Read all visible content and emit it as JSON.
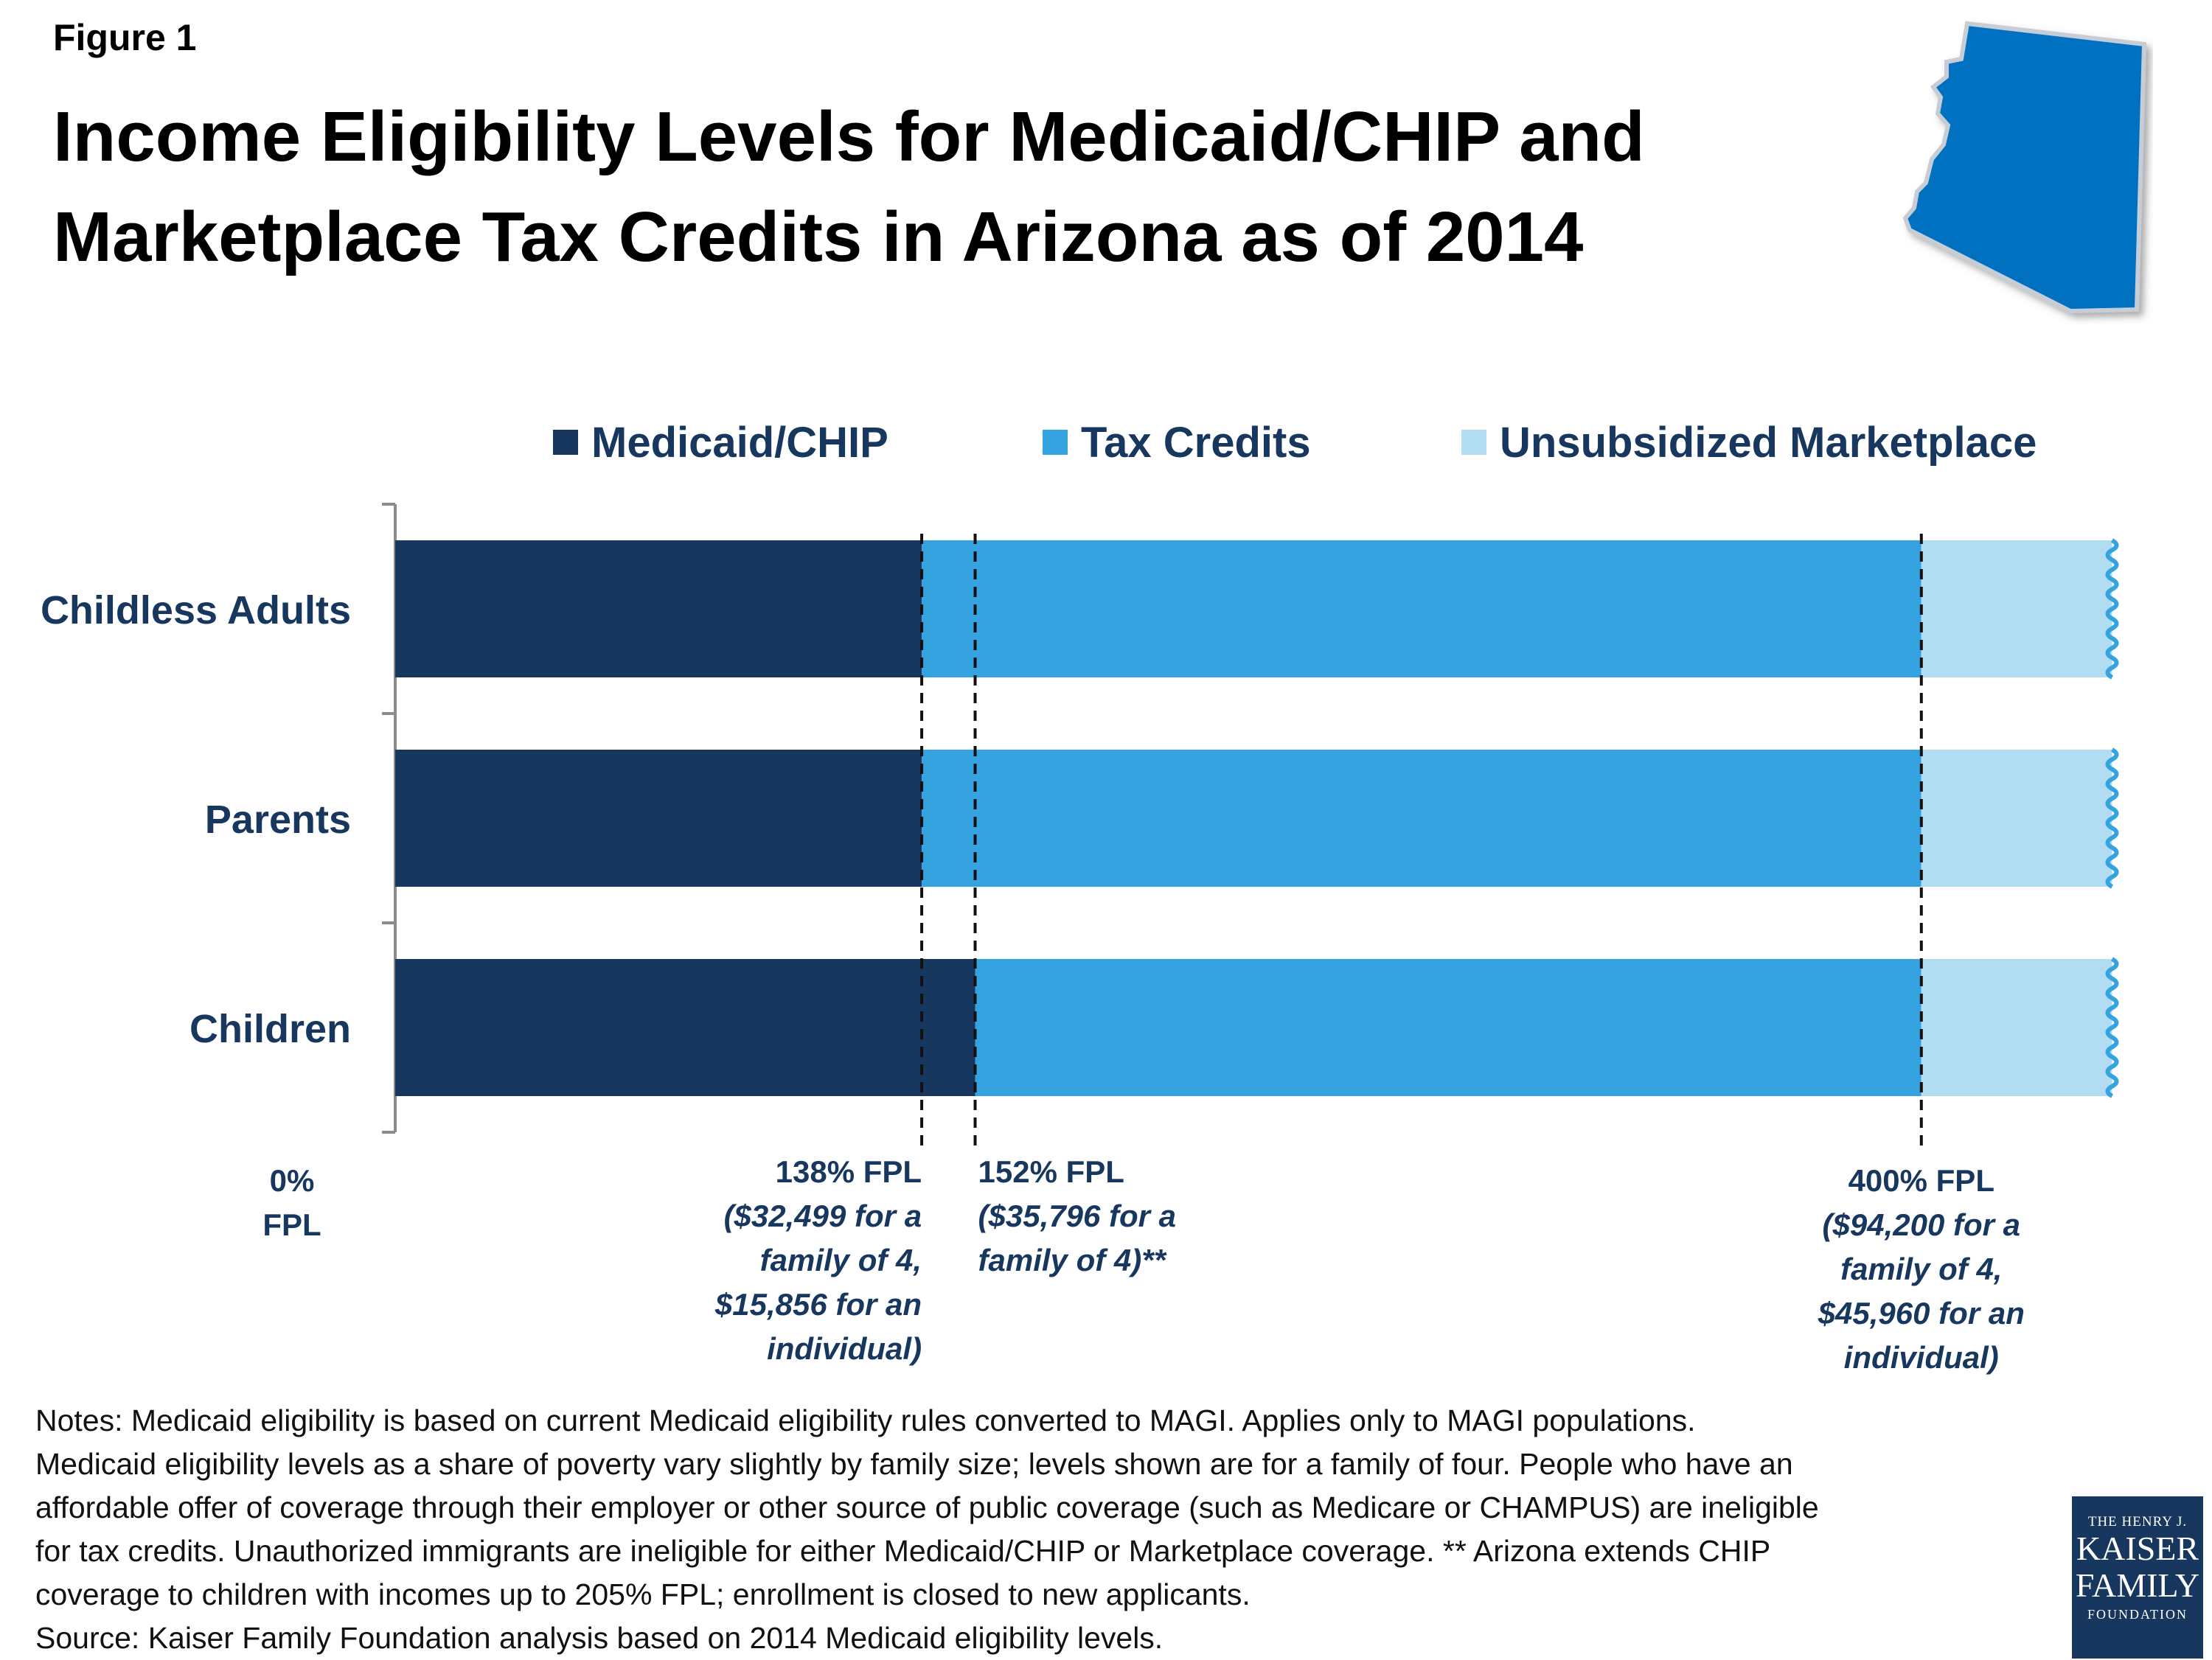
{
  "figure_label": "Figure 1",
  "title_lines": [
    "Income Eligibility Levels for Medicaid/CHIP and",
    "Marketplace Tax Credits in Arizona as of 2014"
  ],
  "state_map": {
    "name": "Arizona",
    "color": "#0070c0"
  },
  "legend": [
    {
      "label": "Medicaid/CHIP",
      "color": "#17375e"
    },
    {
      "label": "Tax Credits",
      "color": "#34a3e0"
    },
    {
      "label": "Unsubsidized Marketplace",
      "color": "#b1dcf1"
    }
  ],
  "chart_data": {
    "type": "bar",
    "orientation": "horizontal",
    "stacked": true,
    "x_unit": "% FPL",
    "xlim": [
      0,
      470
    ],
    "x_axis_break_at_end": true,
    "categories": [
      "Childless Adults",
      "Parents",
      "Children"
    ],
    "series": [
      {
        "name": "Medicaid/CHIP",
        "color": "#17375e",
        "ranges": [
          [
            0,
            138
          ],
          [
            0,
            138
          ],
          [
            0,
            152
          ]
        ]
      },
      {
        "name": "Tax Credits",
        "color": "#34a3e0",
        "ranges": [
          [
            138,
            400
          ],
          [
            138,
            400
          ],
          [
            152,
            400
          ]
        ]
      },
      {
        "name": "Unsubsidized Marketplace",
        "color": "#b1dcf1",
        "ranges": [
          [
            400,
            450
          ],
          [
            400,
            450
          ],
          [
            400,
            450
          ]
        ]
      }
    ],
    "reference_lines": [
      138,
      152,
      400
    ],
    "tick_labels": [
      {
        "value": 0,
        "align": "center",
        "pct": [
          "0%",
          "FPL"
        ],
        "note": []
      },
      {
        "value": 138,
        "align": "right",
        "pct": [
          "138% FPL"
        ],
        "note": [
          "($32,499 for a",
          "family of 4,",
          "$15,856 for an",
          "individual)"
        ]
      },
      {
        "value": 152,
        "align": "left",
        "pct": [
          "152% FPL"
        ],
        "note": [
          "($35,796 for a",
          "family of 4)**"
        ]
      },
      {
        "value": 400,
        "align": "center",
        "pct": [
          "400% FPL"
        ],
        "note": [
          "($94,200 for a",
          "family of 4,",
          "$45,960 for an",
          "individual)"
        ]
      }
    ]
  },
  "notes_lines": [
    "Notes: Medicaid eligibility is based on current Medicaid eligibility rules converted to MAGI. Applies only to MAGI populations.",
    "Medicaid eligibility levels as a share of poverty vary slightly by family size; levels shown are for a family of four. People who have an",
    "affordable offer of coverage through their employer or other source of public coverage (such as Medicare or CHAMPUS) are ineligible",
    "for tax credits. Unauthorized immigrants are ineligible for either Medicaid/CHIP or Marketplace coverage. ** Arizona extends CHIP",
    "coverage to children with incomes up to 205% FPL; enrollment is closed to new applicants."
  ],
  "source": "Source: Kaiser Family Foundation analysis based on 2014 Medicaid eligibility levels.",
  "logo": {
    "line1": "THE HENRY J.",
    "line2": "KAISER",
    "line3": "FAMILY",
    "line4": "FOUNDATION"
  }
}
